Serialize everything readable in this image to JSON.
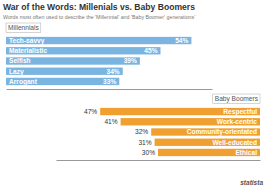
{
  "chart_data": [
    {
      "type": "bar",
      "orientation": "horizontal",
      "title": "War of the Words: Millenials vs. Baby Boomers",
      "subtitle": "Words most often used to describe the 'Millennial' and 'Baby Boomer' generations'",
      "categories": [
        "Tech-savvy",
        "Materialistic",
        "Selfish",
        "Lazy",
        "Arrogant"
      ],
      "series": [
        {
          "name": "Millennials",
          "color": "#7ab4e0",
          "values": [
            54,
            45,
            39,
            34,
            33
          ],
          "value_labels": [
            "54%",
            "45%",
            "39%",
            "34%",
            "33%"
          ]
        }
      ],
      "xlim": [
        0,
        60
      ],
      "tick_labels": false,
      "data_labels": true
    },
    {
      "type": "bar",
      "orientation": "horizontal",
      "categories": [
        "Respectful",
        "Work-centric",
        "Community-orientated",
        "Well-educated",
        "Ethical"
      ],
      "series": [
        {
          "name": "Baby Boomers",
          "color": "#f0a030",
          "values": [
            47,
            41,
            32,
            31,
            30
          ],
          "value_labels": [
            "47%",
            "41%",
            "32%",
            "31%",
            "30%"
          ]
        }
      ],
      "xlim": [
        0,
        60
      ],
      "tick_labels": false,
      "data_labels": true,
      "annotations": [
        "statista"
      ]
    }
  ]
}
